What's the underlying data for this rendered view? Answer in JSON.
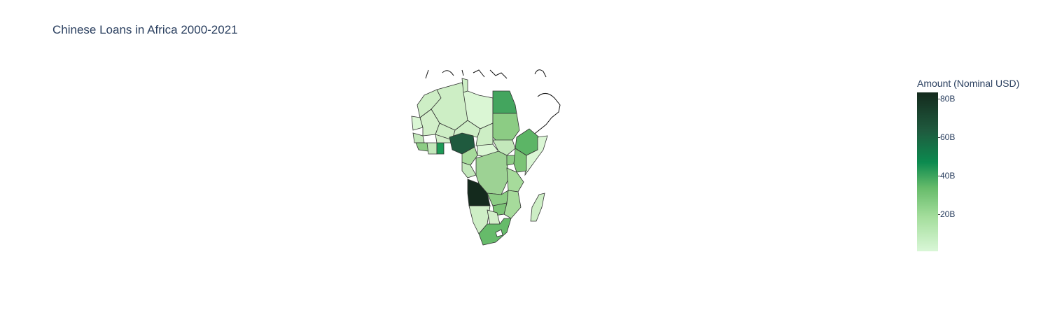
{
  "title": "Chinese Loans in Africa 2000-2021",
  "colorbar": {
    "title": "Amount (Nominal USD)",
    "ticks": [
      "80B",
      "60B",
      "40B",
      "20B"
    ],
    "colorscale": [
      "#d9f7d7",
      "#a3dd9b",
      "#66bb6a",
      "#0c8a4f",
      "#1f5a3e",
      "#142a1d"
    ]
  },
  "map": {
    "border_color": "#3a3a3a",
    "land_outline_color": "#000000",
    "highest_regions": [
      "Angola",
      "Nigeria"
    ]
  }
}
